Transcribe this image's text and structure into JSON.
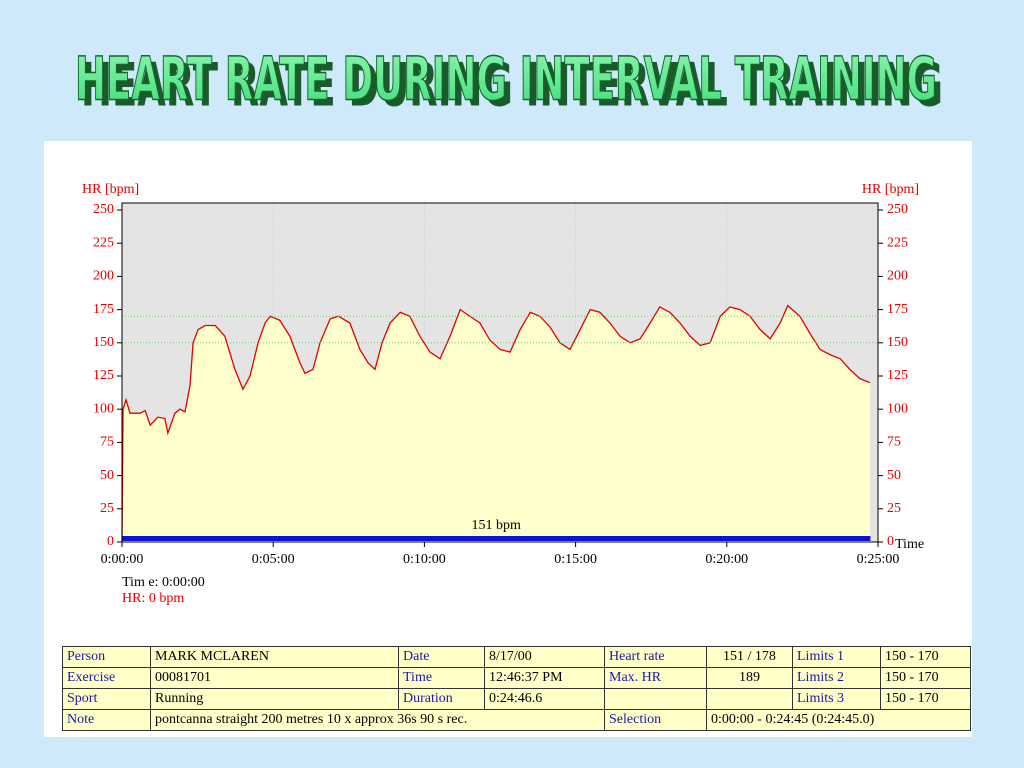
{
  "chart_data": {
    "type": "line",
    "title": "HEART RATE DURING INTERVAL TRAINING",
    "y_label": "HR [bpm]",
    "y2_label": "HR [bpm]",
    "x_label": "Time",
    "x": [
      0,
      2,
      8,
      16,
      36,
      46,
      56,
      71,
      85,
      91,
      105,
      115,
      125,
      135,
      141,
      151,
      165,
      185,
      204,
      224,
      240,
      254,
      270,
      284,
      294,
      313,
      333,
      353,
      363,
      379,
      393,
      413,
      429,
      452,
      472,
      488,
      502,
      516,
      532,
      552,
      571,
      591,
      611,
      631,
      651,
      671,
      690,
      710,
      730,
      750,
      770,
      790,
      810,
      829,
      849,
      869,
      889,
      909,
      929,
      948,
      968,
      988,
      1008,
      1028,
      1048,
      1067,
      1087,
      1107,
      1127,
      1147,
      1167,
      1187,
      1206,
      1226,
      1246,
      1266,
      1286,
      1306,
      1321,
      1345,
      1365,
      1385,
      1405,
      1425,
      1444,
      1464,
      1484
    ],
    "series": [
      {
        "name": "HR",
        "color": "#e00000",
        "fill": "#ffffcc",
        "values": [
          0,
          100,
          107,
          97,
          97,
          99,
          88,
          94,
          93,
          82,
          97,
          100,
          98,
          118,
          150,
          160,
          163,
          163,
          155,
          130,
          115,
          125,
          150,
          165,
          170,
          167,
          155,
          135,
          127,
          130,
          150,
          168,
          170,
          165,
          145,
          135,
          130,
          150,
          165,
          173,
          170,
          155,
          143,
          138,
          155,
          175,
          170,
          165,
          152,
          145,
          143,
          160,
          173,
          170,
          162,
          150,
          145,
          160,
          175,
          173,
          165,
          155,
          150,
          153,
          165,
          177,
          173,
          165,
          155,
          148,
          150,
          170,
          177,
          175,
          170,
          160,
          153,
          165,
          178,
          170,
          157,
          145,
          141,
          138,
          130,
          123,
          120
        ]
      }
    ],
    "xlim": [
      0,
      1500
    ],
    "xticks": [
      {
        "value": 0,
        "label": "0:00:00"
      },
      {
        "value": 300,
        "label": "0:05:00"
      },
      {
        "value": 600,
        "label": "0:10:00"
      },
      {
        "value": 900,
        "label": "0:15:00"
      },
      {
        "value": 1200,
        "label": "0:20:00"
      },
      {
        "value": 1500,
        "label": "0:25:00"
      }
    ],
    "ylim": [
      0,
      250
    ],
    "yticks": [
      0,
      25,
      50,
      75,
      100,
      125,
      150,
      175,
      200,
      225,
      250
    ],
    "y2lim": [
      0,
      250
    ],
    "y2ticks": [
      0,
      25,
      50,
      75,
      100,
      125,
      150,
      175,
      200,
      225,
      250
    ],
    "limit_lines": [
      150,
      170
    ],
    "selection": [
      0,
      1485
    ],
    "selection_label": "151 bpm",
    "cursor_time": "Tim e: 0:00:00",
    "cursor_hr": "HR: 0 bpm",
    "grid": true
  },
  "table": {
    "rows": [
      [
        "Person",
        "MARK MCLAREN",
        "Date",
        "8/17/00",
        "Heart rate",
        "151 / 178",
        "Limits 1",
        "150 - 170"
      ],
      [
        "Exercise",
        "00081701",
        "Time",
        "12:46:37 PM",
        "Max. HR",
        "189",
        "Limits 2",
        "150 - 170"
      ],
      [
        "Sport",
        "Running",
        "Duration",
        "0:24:46.6",
        "Limits 3",
        "150 - 170"
      ],
      [
        "Note",
        "pontcanna straight 200 metres  10 x approx 36s  90 s rec.",
        "Selection",
        "0:00:00 - 0:24:45 (0:24:45.0)"
      ]
    ]
  }
}
